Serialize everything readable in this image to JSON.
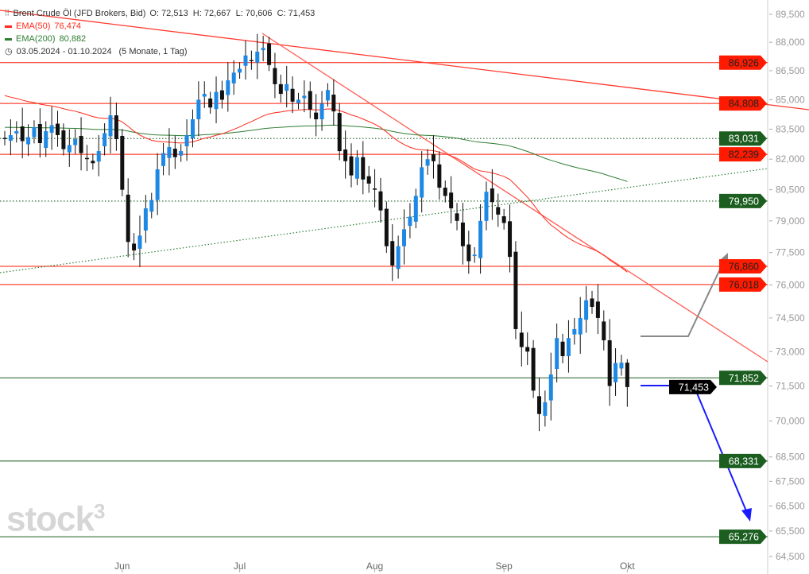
{
  "legend": {
    "instrument": "Brent Crude Öl (JFD Brokers, Bid)",
    "ohlc": "O: 72,513  H: 72,667  L: 70,606  C: 71,453",
    "ema50": {
      "label": "EMA(50)",
      "value": "76,474",
      "color": "#ff2a1a"
    },
    "ema200": {
      "label": "EMA(200)",
      "value": "80,882",
      "color": "#2e7d32"
    },
    "range": "03.05.2024 - 01.10.2024",
    "period": "(5 Monate, 1 Tag)"
  },
  "watermark": "stock3",
  "chart_data": {
    "type": "candlestick",
    "title": "Brent Crude Öl (JFD Brokers, Bid)",
    "scale": "log",
    "ylim": [
      64.0,
      90.2
    ],
    "y_ticks": [
      "89,500",
      "88,000",
      "86,500",
      "85,000",
      "83,500",
      "82,000",
      "80,500",
      "79,000",
      "77,500",
      "76,000",
      "74,500",
      "73,000",
      "71,500",
      "70,000",
      "68,500",
      "67,500",
      "66,500",
      "65,500",
      "64,500"
    ],
    "y_tick_values": [
      89.5,
      88,
      86.5,
      85,
      83.5,
      82,
      80.5,
      79,
      77.5,
      76,
      74.5,
      73,
      71.5,
      70,
      68.5,
      67.5,
      66.5,
      65.5,
      64.5
    ],
    "x_labels": [
      {
        "label": "Jun",
        "index": 20
      },
      {
        "label": "Jul",
        "index": 40
      },
      {
        "label": "Aug",
        "index": 63
      },
      {
        "label": "Sep",
        "index": 85
      },
      {
        "label": "Okt",
        "index": 106
      }
    ],
    "closes": [
      83.0,
      83.2,
      83.4,
      82.9,
      83.1,
      83.6,
      82.8,
      83.4,
      83.7,
      83.2,
      82.5,
      82.7,
      83.0,
      82.3,
      82.0,
      81.8,
      82.4,
      83.3,
      84.2,
      83.0,
      80.5,
      78.0,
      77.6,
      78.3,
      79.6,
      80.0,
      81.5,
      82.3,
      82.6,
      82.1,
      82.4,
      83.2,
      84.0,
      85.0,
      85.3,
      84.6,
      85.4,
      85.0,
      86.0,
      86.4,
      86.6,
      87.3,
      87.0,
      87.5,
      87.7,
      86.8,
      85.8,
      85.3,
      85.8,
      84.9,
      85.0,
      85.2,
      84.5,
      84.0,
      84.8,
      85.5,
      84.4,
      82.4,
      81.9,
      81.2,
      82.1,
      81.0,
      80.8,
      80.5,
      79.5,
      77.8,
      76.9,
      77.8,
      78.6,
      79.2,
      80.2,
      81.6,
      82.0,
      81.9,
      80.6,
      80.2,
      79.6,
      79.0,
      77.8,
      77.1,
      77.4,
      79.0,
      80.4,
      79.9,
      79.3,
      78.9,
      77.3,
      74.0,
      73.2,
      73.0,
      71.3,
      70.3,
      70.8,
      72.0,
      73.6,
      72.8,
      73.6,
      74.0,
      74.5,
      75.3,
      75.0,
      74.5,
      73.5,
      71.5,
      72.5,
      72.513,
      71.453
    ],
    "last_candle": {
      "open": 72.513,
      "high": 72.667,
      "low": 70.606,
      "close": 71.453
    },
    "ema_seed": {
      "ema50": 85.3,
      "ema200": 83.6
    },
    "levels": [
      {
        "value": 86.926,
        "label": "86,926",
        "color": "#ff1a00",
        "style": "solid"
      },
      {
        "value": 84.808,
        "label": "84,808",
        "color": "#ff1a00",
        "style": "solid"
      },
      {
        "value": 83.031,
        "label": "83,031",
        "color": "#1b5e20",
        "style": "dotted"
      },
      {
        "value": 82.239,
        "label": "82,239",
        "color": "#ff1a00",
        "style": "solid"
      },
      {
        "value": 79.95,
        "label": "79,950",
        "color": "#1b5e20",
        "style": "dotted"
      },
      {
        "value": 76.86,
        "label": "76,860",
        "color": "#ff1a00",
        "style": "solid"
      },
      {
        "value": 76.018,
        "label": "76,018",
        "color": "#ff1a00",
        "style": "solid"
      },
      {
        "value": 71.852,
        "label": "71,852",
        "color": "#1b5e20",
        "style": "solid"
      },
      {
        "value": 68.331,
        "label": "68,331",
        "color": "#1b5e20",
        "style": "solid"
      },
      {
        "value": 65.276,
        "label": "65,276",
        "color": "#1b5e20",
        "style": "solid"
      }
    ],
    "current_price": {
      "value": 71.453,
      "label": "71,453"
    },
    "colors": {
      "up": "#1e88e5",
      "down": "#111111",
      "arrow_up": "#888888",
      "arrow_down": "#1a1aff"
    }
  }
}
